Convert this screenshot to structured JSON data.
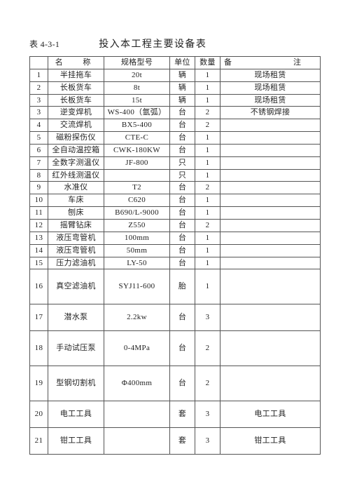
{
  "table_number": "表 4-3-1",
  "title": "投入本工程主要设备表",
  "headers": {
    "name": "名　称",
    "spec": "规格型号",
    "unit": "单位",
    "qty": "数量",
    "remark": "备　　注"
  },
  "rows": [
    {
      "idx": "1",
      "name": "半挂拖车",
      "spec": "20t",
      "unit": "辆",
      "qty": "1",
      "remark": "现场租赁",
      "h": ""
    },
    {
      "idx": "2",
      "name": "长板货车",
      "spec": "8t",
      "unit": "辆",
      "qty": "1",
      "remark": "现场租赁",
      "h": ""
    },
    {
      "idx": "3",
      "name": "长板货车",
      "spec": "15t",
      "unit": "辆",
      "qty": "1",
      "remark": "现场租赁",
      "h": ""
    },
    {
      "idx": "3",
      "name": "逆变焊机",
      "spec": "WS-400（氩弧）",
      "unit": "台",
      "qty": "2",
      "remark": "不锈钢焊接",
      "h": ""
    },
    {
      "idx": "4",
      "name": "交流焊机",
      "spec": "BX5-400",
      "unit": "台",
      "qty": "2",
      "remark": "",
      "h": ""
    },
    {
      "idx": "5",
      "name": "磁粉探伤仪",
      "spec": "CTE-C",
      "unit": "台",
      "qty": "1",
      "remark": "",
      "h": ""
    },
    {
      "idx": "6",
      "name": "全自动温控箱",
      "spec": "CWK-180KW",
      "unit": "台",
      "qty": "1",
      "remark": "",
      "h": ""
    },
    {
      "idx": "7",
      "name": "全数字测温仪",
      "spec": "JF-800",
      "unit": "只",
      "qty": "1",
      "remark": "",
      "h": ""
    },
    {
      "idx": "8",
      "name": "红外线测温仪",
      "spec": "",
      "unit": "只",
      "qty": "1",
      "remark": "",
      "h": ""
    },
    {
      "idx": "9",
      "name": "水准仪",
      "spec": "T2",
      "unit": "台",
      "qty": "2",
      "remark": "",
      "h": ""
    },
    {
      "idx": "10",
      "name": "车床",
      "spec": "C620",
      "unit": "台",
      "qty": "1",
      "remark": "",
      "h": ""
    },
    {
      "idx": "11",
      "name": "刨床",
      "spec": "B690/L-9000",
      "unit": "台",
      "qty": "1",
      "remark": "",
      "h": ""
    },
    {
      "idx": "12",
      "name": "摇臂钻床",
      "spec": "Z550",
      "unit": "台",
      "qty": "2",
      "remark": "",
      "h": ""
    },
    {
      "idx": "13",
      "name": "液压弯管机",
      "spec": "100mm",
      "unit": "台",
      "qty": "1",
      "remark": "",
      "h": ""
    },
    {
      "idx": "14",
      "name": "液压弯管机",
      "spec": "50mm",
      "unit": "台",
      "qty": "1",
      "remark": "",
      "h": ""
    },
    {
      "idx": "15",
      "name": "压力滤油机",
      "spec": "LY-50",
      "unit": "台",
      "qty": "1",
      "remark": "",
      "h": ""
    },
    {
      "idx": "16",
      "name": "真空滤油机",
      "spec": "SYJ11-600",
      "unit": "胎",
      "qty": "1",
      "remark": "",
      "h": "tall"
    },
    {
      "idx": "17",
      "name": "潜水泵",
      "spec": "2.2kw",
      "unit": "台",
      "qty": "3",
      "remark": "",
      "h": "med"
    },
    {
      "idx": "18",
      "name": "手动试压泵",
      "spec": "0-4MPa",
      "unit": "台",
      "qty": "2",
      "remark": "",
      "h": "tall"
    },
    {
      "idx": "19",
      "name": "型钢切割机",
      "spec": "Φ400mm",
      "unit": "台",
      "qty": "2",
      "remark": "",
      "h": "tall"
    },
    {
      "idx": "20",
      "name": "电工工具",
      "spec": "",
      "unit": "套",
      "qty": "3",
      "remark": "电工工具",
      "h": "med"
    },
    {
      "idx": "21",
      "name": "钳工工具",
      "spec": "",
      "unit": "套",
      "qty": "3",
      "remark": "钳工工具",
      "h": "med"
    }
  ]
}
